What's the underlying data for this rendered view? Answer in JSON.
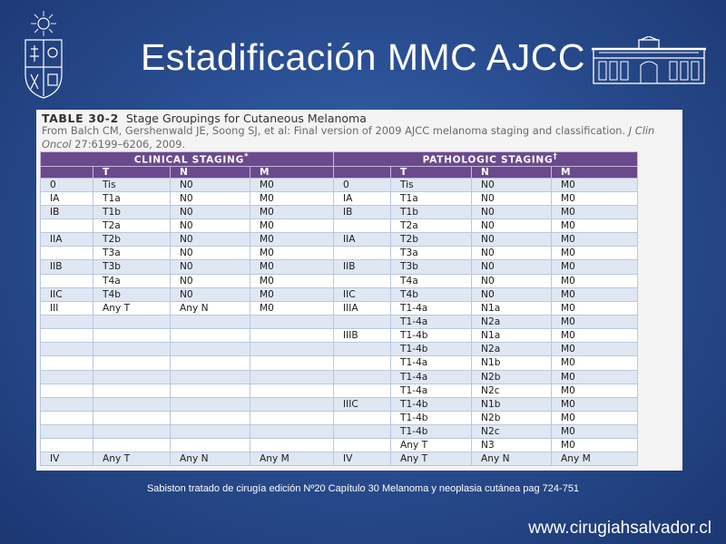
{
  "slide": {
    "title": "Estadificación MMC AJCC",
    "footnote": "Sabiston tratado de cirugía edición Nº20  Capítulo 30  Melanoma y neoplasia cutánea pag 724-751",
    "website": "www.cirugiahsalvador.cl"
  },
  "table_doc": {
    "label": "TABLE 30-2",
    "caption": "Stage Groupings for Cutaneous Melanoma",
    "source_pre": "From Balch CM, Gershenwald JE, Soong SJ, et al: Final version of 2009 AJCC melanoma staging and classification. ",
    "source_journal": "J Clin Oncol",
    "source_post": " 27:6199–6206, 2009.",
    "group_clinical": "CLINICAL STAGING",
    "group_clinical_sup": "*",
    "group_pathologic": "PATHOLOGIC STAGING",
    "group_pathologic_sup": "†",
    "col_blank": "",
    "col_t": "T",
    "col_n": "N",
    "col_m": "M"
  },
  "rows": [
    [
      "0",
      "Tis",
      "N0",
      "M0",
      "0",
      "Tis",
      "N0",
      "M0"
    ],
    [
      "IA",
      "T1a",
      "N0",
      "M0",
      "IA",
      "T1a",
      "N0",
      "M0"
    ],
    [
      "IB",
      "T1b",
      "N0",
      "M0",
      "IB",
      "T1b",
      "N0",
      "M0"
    ],
    [
      "",
      "T2a",
      "N0",
      "M0",
      "",
      "T2a",
      "N0",
      "M0"
    ],
    [
      "IIA",
      "T2b",
      "N0",
      "M0",
      "IIA",
      "T2b",
      "N0",
      "M0"
    ],
    [
      "",
      "T3a",
      "N0",
      "M0",
      "",
      "T3a",
      "N0",
      "M0"
    ],
    [
      "IIB",
      "T3b",
      "N0",
      "M0",
      "IIB",
      "T3b",
      "N0",
      "M0"
    ],
    [
      "",
      "T4a",
      "N0",
      "M0",
      "",
      "T4a",
      "N0",
      "M0"
    ],
    [
      "IIC",
      "T4b",
      "N0",
      "M0",
      "IIC",
      "T4b",
      "N0",
      "M0"
    ],
    [
      "III",
      "Any T",
      "Any N",
      "M0",
      "IIIA",
      "T1-4a",
      "N1a",
      "M0"
    ],
    [
      "",
      "",
      "",
      "",
      "",
      "T1-4a",
      "N2a",
      "M0"
    ],
    [
      "",
      "",
      "",
      "",
      "IIIB",
      "T1-4b",
      "N1a",
      "M0"
    ],
    [
      "",
      "",
      "",
      "",
      "",
      "T1-4b",
      "N2a",
      "M0"
    ],
    [
      "",
      "",
      "",
      "",
      "",
      "T1-4a",
      "N1b",
      "M0"
    ],
    [
      "",
      "",
      "",
      "",
      "",
      "T1-4a",
      "N2b",
      "M0"
    ],
    [
      "",
      "",
      "",
      "",
      "",
      "T1-4a",
      "N2c",
      "M0"
    ],
    [
      "",
      "",
      "",
      "",
      "IIIC",
      "T1-4b",
      "N1b",
      "M0"
    ],
    [
      "",
      "",
      "",
      "",
      "",
      "T1-4b",
      "N2b",
      "M0"
    ],
    [
      "",
      "",
      "",
      "",
      "",
      "T1-4b",
      "N2c",
      "M0"
    ],
    [
      "",
      "",
      "",
      "",
      "",
      "Any T",
      "N3",
      "M0"
    ],
    [
      "IV",
      "Any T",
      "Any N",
      "Any M",
      "IV",
      "Any T",
      "Any N",
      "Any M"
    ]
  ],
  "colors": {
    "background": "#2a4f93",
    "header": "#6a4a8c",
    "row_alt": "#dfe7f3"
  },
  "icons": {
    "left": "university-crest-icon",
    "right": "hospital-building-icon"
  }
}
